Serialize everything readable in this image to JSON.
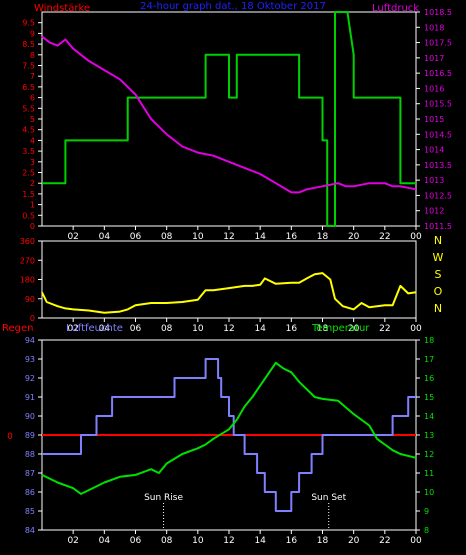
{
  "colors": {
    "background": "#000000",
    "frame": "#ffffff",
    "wind_speed": "#00d000",
    "pressure": "#e000e0",
    "wind_dir": "#ffff00",
    "humidity": "#8080ff",
    "temperature": "#00e000",
    "rain": "#ff0000",
    "title": "#2020ff",
    "compass": "#ffff00",
    "sun_marker": "#ffffff"
  },
  "chart_data": [
    {
      "type": "line",
      "title": "24-hour graph dat., 18 Oktober 2017",
      "left_label": "Windstärke",
      "right_label": "Luftdruck",
      "x_ticks": [
        "02",
        "04",
        "06",
        "08",
        "10",
        "12",
        "14",
        "16",
        "18",
        "20",
        "22",
        "00"
      ],
      "x_range": [
        0,
        24
      ],
      "left_axis": {
        "ticks": [
          "0",
          "0.5",
          "1",
          "1.5",
          "2",
          "2.5",
          "3",
          "3.5",
          "4",
          "4.5",
          "5",
          "5.5",
          "6",
          "6.5",
          "7",
          "7.5",
          "8",
          "8.5",
          "9",
          "9.5"
        ],
        "range": [
          0,
          10
        ]
      },
      "right_axis": {
        "ticks": [
          "1011.5",
          "1012",
          "1012.5",
          "1013",
          "1013.5",
          "1014",
          "1014.5",
          "1015",
          "1015.5",
          "1016",
          "1016.5",
          "1017",
          "1017.5",
          "1018",
          "1018.5"
        ],
        "range": [
          1011.5,
          1018.5
        ]
      },
      "series": [
        {
          "key": "wind",
          "axis": "left",
          "step": true,
          "x": [
            0,
            1.5,
            1.5,
            5.5,
            5.5,
            10.5,
            10.5,
            12,
            12,
            12.5,
            12.5,
            13,
            13,
            16.5,
            16.5,
            18,
            18,
            18.3,
            18.3,
            18.8,
            18.8,
            19.6,
            19.6,
            20,
            20,
            23,
            23,
            24
          ],
          "y": [
            2,
            2,
            4,
            4,
            6,
            6,
            8,
            8,
            6,
            6,
            8,
            8,
            8,
            8,
            6,
            6,
            4,
            4,
            0,
            0,
            10,
            10,
            10,
            8,
            6,
            6,
            2,
            2
          ]
        },
        {
          "key": "pressure",
          "axis": "right",
          "step": false,
          "x": [
            0,
            0.5,
            1,
            1.5,
            2,
            3,
            4,
            5,
            6,
            6.5,
            7,
            8,
            9,
            10,
            11,
            12,
            13,
            14,
            15,
            16,
            16.5,
            17,
            18,
            19,
            19.5,
            20,
            21,
            22,
            22.5,
            23,
            24
          ],
          "y": [
            1017.7,
            1017.5,
            1017.4,
            1017.6,
            1017.3,
            1016.9,
            1016.6,
            1016.3,
            1015.8,
            1015.4,
            1015.0,
            1014.5,
            1014.1,
            1013.9,
            1013.8,
            1013.6,
            1013.4,
            1013.2,
            1012.9,
            1012.6,
            1012.6,
            1012.7,
            1012.8,
            1012.9,
            1012.8,
            1012.8,
            1012.9,
            1012.9,
            1012.8,
            1012.8,
            1012.7
          ]
        }
      ]
    },
    {
      "type": "line",
      "x_ticks": [
        "02",
        "04",
        "06",
        "08",
        "10",
        "12",
        "14",
        "16",
        "18",
        "20",
        "22",
        "00"
      ],
      "x_range": [
        0,
        24
      ],
      "left_axis": {
        "ticks": [
          "0",
          "45",
          "90",
          "135",
          "180",
          "225",
          "270",
          "315",
          "360"
        ],
        "range": [
          0,
          360
        ]
      },
      "compass": [
        "N",
        "W",
        "S",
        "O",
        "N"
      ],
      "series": [
        {
          "key": "wind_dir",
          "axis": "left",
          "step": false,
          "x": [
            0,
            0.3,
            1,
            1.5,
            2,
            3,
            4,
            5,
            5.5,
            6,
            7,
            8,
            9,
            10,
            10.5,
            11,
            12,
            13,
            13.5,
            14,
            14.3,
            15,
            16,
            16.5,
            17,
            17.5,
            18,
            18.5,
            18.8,
            19.3,
            20,
            20.5,
            21,
            22,
            22.5,
            23,
            23.5,
            24
          ],
          "y": [
            120,
            75,
            55,
            45,
            40,
            35,
            25,
            30,
            40,
            60,
            70,
            70,
            75,
            85,
            130,
            130,
            140,
            150,
            150,
            155,
            185,
            160,
            165,
            165,
            185,
            205,
            210,
            180,
            90,
            55,
            40,
            70,
            50,
            60,
            60,
            150,
            115,
            120
          ]
        }
      ]
    },
    {
      "type": "line",
      "top_labels": [
        "Regen",
        "Luftfeuchte",
        "Temperatur"
      ],
      "x_ticks": [
        "02",
        "04",
        "06",
        "08",
        "10",
        "12",
        "14",
        "16",
        "18",
        "20",
        "22",
        "00"
      ],
      "x_range": [
        0,
        24
      ],
      "left_axis": {
        "ticks": [
          "84",
          "85",
          "86",
          "87",
          "88",
          "89",
          "90",
          "91",
          "92",
          "93",
          "94"
        ],
        "range": [
          84,
          94
        ]
      },
      "right_axis": {
        "ticks": [
          "8",
          "9",
          "10",
          "11",
          "12",
          "13",
          "14",
          "15",
          "16",
          "17",
          "18"
        ],
        "range": [
          8,
          18
        ]
      },
      "rain_axis": {
        "ticks": [
          "0"
        ],
        "value": 0
      },
      "annotations": [
        {
          "label": "Sun Rise",
          "x": 7.8
        },
        {
          "label": "Sun Set",
          "x": 18.4
        }
      ],
      "series": [
        {
          "key": "humidity",
          "axis": "left",
          "step": true,
          "x": [
            0,
            2.5,
            2.5,
            3.5,
            3.5,
            4.5,
            4.5,
            8.5,
            8.5,
            10.5,
            10.5,
            10.7,
            10.7,
            11.3,
            11.3,
            11.5,
            11.5,
            12,
            12,
            12.3,
            12.3,
            13,
            13,
            13.8,
            13.8,
            14.3,
            14.3,
            15,
            15,
            16,
            16,
            16.5,
            16.5,
            17.3,
            17.3,
            18,
            18,
            22.5,
            22.5,
            23.5,
            23.5,
            24
          ],
          "y": [
            88,
            88,
            89,
            89,
            90,
            90,
            91,
            91,
            92,
            92,
            93,
            93,
            93,
            93,
            92,
            92,
            91,
            91,
            90,
            90,
            89,
            89,
            88,
            88,
            87,
            87,
            86,
            86,
            85,
            85,
            86,
            86,
            87,
            87,
            88,
            88,
            89,
            89,
            90,
            90,
            91,
            91
          ]
        },
        {
          "key": "temperature",
          "axis": "right",
          "step": false,
          "x": [
            0,
            1,
            2,
            2.5,
            3,
            4,
            5,
            6,
            7,
            7.5,
            8,
            9,
            10,
            10.5,
            11,
            12,
            12.5,
            13,
            13.5,
            14,
            14.5,
            15,
            15.5,
            16,
            16.5,
            17,
            17.5,
            18,
            19,
            20,
            21,
            21.5,
            22,
            22.5,
            23,
            24
          ],
          "y": [
            10.9,
            10.5,
            10.2,
            9.9,
            10.1,
            10.5,
            10.8,
            10.9,
            11.2,
            11.0,
            11.5,
            12.0,
            12.3,
            12.5,
            12.8,
            13.3,
            13.8,
            14.5,
            15.0,
            15.6,
            16.2,
            16.8,
            16.5,
            16.3,
            15.8,
            15.4,
            15.0,
            14.9,
            14.8,
            14.1,
            13.5,
            12.8,
            12.5,
            12.2,
            12.0,
            11.8
          ]
        }
      ]
    }
  ]
}
